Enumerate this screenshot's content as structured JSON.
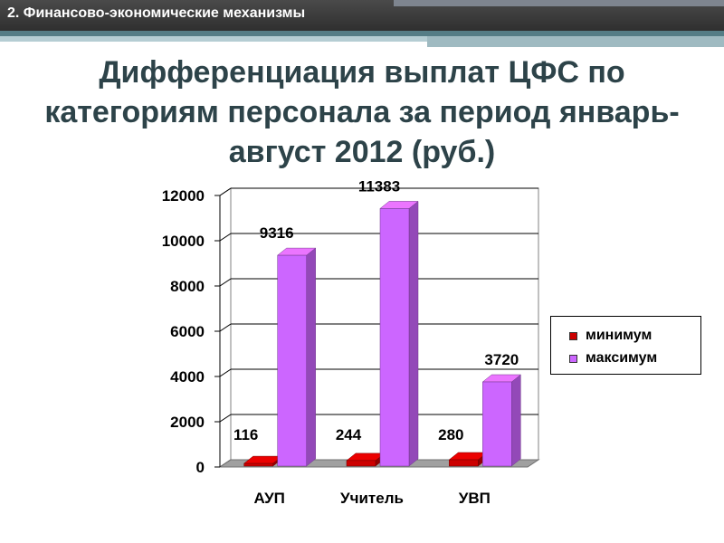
{
  "header": {
    "section_label": "2. Финансово-экономические механизмы"
  },
  "slide": {
    "title": "Дифференциация выплат ЦФС по категориям персонала за период январь-август 2012 (руб.)"
  },
  "colors": {
    "minimum": "#cc0000",
    "maximum": "#cc66ff",
    "header_bg": "#3a3a3a",
    "title_text": "#2d4349"
  },
  "chart_data": {
    "type": "bar",
    "style": "3d-clustered-column",
    "title": "",
    "xlabel": "",
    "ylabel": "",
    "categories": [
      "АУП",
      "Учитель",
      "УВП"
    ],
    "series": [
      {
        "name": "минимум",
        "values": [
          116,
          244,
          280
        ],
        "color": "#cc0000"
      },
      {
        "name": "максимум",
        "values": [
          9316,
          11383,
          3720
        ],
        "color": "#cc66ff"
      }
    ],
    "data_labels": {
      "minimum": [
        "116",
        "244",
        "280"
      ],
      "maximum": [
        "9316",
        "11383",
        "3720"
      ]
    },
    "ylim": [
      0,
      12000
    ],
    "yticks": [
      0,
      2000,
      4000,
      6000,
      8000,
      10000,
      12000
    ],
    "ytick_labels": [
      "0",
      "2000",
      "4000",
      "6000",
      "8000",
      "10000",
      "12000"
    ],
    "grid": true,
    "legend": {
      "position": "right",
      "items": [
        "минимум",
        "максимум"
      ]
    }
  }
}
